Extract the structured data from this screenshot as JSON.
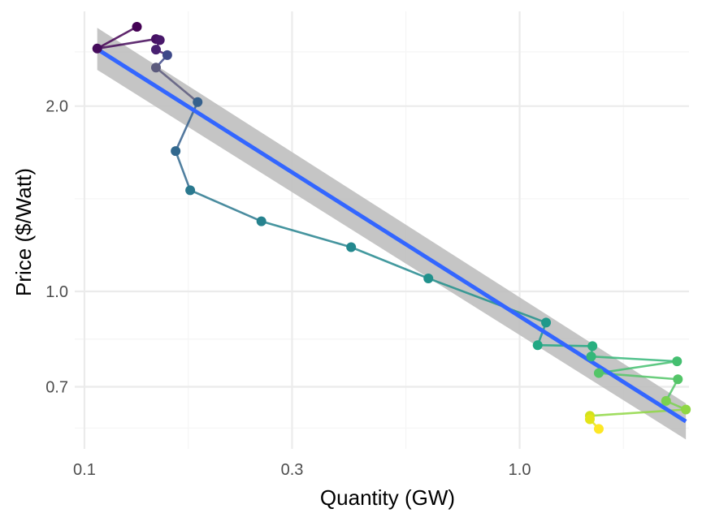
{
  "chart_data": {
    "type": "scatter",
    "xlabel": "Quantity (GW)",
    "ylabel": "Price ($/Watt)",
    "x_scale": "log10",
    "y_scale": "log10",
    "xlim": [
      0.095,
      2.45
    ],
    "ylim": [
      0.555,
      2.85
    ],
    "x_ticks": [
      0.1,
      0.3,
      1.0
    ],
    "x_tick_labels": [
      "0.1",
      "0.3",
      "1.0"
    ],
    "x_minor_ticks": [
      0.1732,
      0.5477,
      1.7321
    ],
    "y_ticks": [
      0.7,
      1.0,
      2.0
    ],
    "y_tick_labels": [
      "0.7",
      "1.0",
      "2.0"
    ],
    "y_minor_ticks": [
      0.6,
      0.8367,
      1.4142,
      2.4495
    ],
    "grid": true,
    "legend": "none",
    "colors": {
      "background": "#ffffff",
      "grid_major": "#ebebeb",
      "grid_minor": "#f5f5f5",
      "fit_line": "#3366ff",
      "ribbon": "#bfbfbf"
    },
    "series": [
      {
        "points": [
          {
            "x": 0.132,
            "y": 2.69,
            "color": "#440154"
          },
          {
            "x": 0.107,
            "y": 2.48,
            "color": "#481769"
          },
          {
            "x": 0.146,
            "y": 2.57,
            "color": "#472a7a"
          },
          {
            "x": 0.149,
            "y": 2.56,
            "color": "#433d84"
          },
          {
            "x": 0.146,
            "y": 2.47,
            "color": "#3d4e8a"
          },
          {
            "x": 0.155,
            "y": 2.42,
            "color": "#365d8d"
          },
          {
            "x": 0.146,
            "y": 2.31,
            "color": "#2e6e8e"
          },
          {
            "x": 0.182,
            "y": 2.03,
            "color": "#29798e"
          },
          {
            "x": 0.162,
            "y": 1.69,
            "color": "#23888e"
          },
          {
            "x": 0.175,
            "y": 1.46,
            "color": "#1f978b"
          },
          {
            "x": 0.255,
            "y": 1.3,
            "color": "#20a386"
          },
          {
            "x": 0.41,
            "y": 1.18,
            "color": "#2ab07f"
          },
          {
            "x": 0.617,
            "y": 1.05,
            "color": "#3bbb75"
          },
          {
            "x": 1.15,
            "y": 0.89,
            "color": "#55c667"
          },
          {
            "x": 1.1,
            "y": 0.818,
            "color": "#73d056"
          },
          {
            "x": 1.47,
            "y": 0.815,
            "color": "#94d840"
          },
          {
            "x": 1.46,
            "y": 0.784,
            "color": "#b8de29"
          },
          {
            "x": 2.3,
            "y": 0.77,
            "color": "#dae319"
          },
          {
            "x": 1.52,
            "y": 0.737,
            "color": "#fde725"
          }
        ],
        "path_colors": [
          "#440154",
          "#46075a",
          "#471164",
          "#48186a",
          "#482071",
          "#482878",
          "#46327e",
          "#443a83",
          "#414487",
          "#3e4989",
          "#39568c",
          "#35608d",
          "#31688e",
          "#2d708e",
          "#2a788e",
          "#26828e",
          "#23888e",
          "#21918c",
          "#1f998a",
          "#20a387",
          "#22a884",
          "#29af7f",
          "#35b779",
          "#44bf70",
          "#54c568",
          "#65cb5e",
          "#75d054",
          "#7ad151",
          "#8fd744",
          "#a5db36",
          "#bddf26",
          "#d2e21b",
          "#e3e418",
          "#fde725"
        ]
      }
    ],
    "all_points": [
      {
        "x": 0.132,
        "y": 2.69
      },
      {
        "x": 0.107,
        "y": 2.48
      },
      {
        "x": 0.146,
        "y": 2.57
      },
      {
        "x": 0.149,
        "y": 2.56
      },
      {
        "x": 0.146,
        "y": 2.47
      },
      {
        "x": 0.155,
        "y": 2.42
      },
      {
        "x": 0.146,
        "y": 2.31
      },
      {
        "x": 0.182,
        "y": 2.03
      },
      {
        "x": 0.162,
        "y": 1.69
      },
      {
        "x": 0.175,
        "y": 1.46
      },
      {
        "x": 0.255,
        "y": 1.3
      },
      {
        "x": 0.41,
        "y": 1.18
      },
      {
        "x": 0.617,
        "y": 1.05
      },
      {
        "x": 1.15,
        "y": 0.89
      },
      {
        "x": 1.1,
        "y": 0.818
      },
      {
        "x": 1.47,
        "y": 0.815
      },
      {
        "x": 1.46,
        "y": 0.784
      },
      {
        "x": 2.3,
        "y": 0.77
      },
      {
        "x": 1.52,
        "y": 0.737
      },
      {
        "x": 2.31,
        "y": 0.72
      },
      {
        "x": 2.17,
        "y": 0.664
      },
      {
        "x": 2.41,
        "y": 0.643
      },
      {
        "x": 1.45,
        "y": 0.628
      },
      {
        "x": 1.45,
        "y": 0.62
      },
      {
        "x": 1.52,
        "y": 0.598
      }
    ],
    "point_colors": [
      "#440154",
      "#450b5b",
      "#471164",
      "#48186a",
      "#482071",
      "#3e4989",
      "#5c5b7d",
      "#35608d",
      "#31688e",
      "#2a788e",
      "#26828e",
      "#23888e",
      "#21918c",
      "#1f998a",
      "#22a884",
      "#29af7f",
      "#35b779",
      "#44bf70",
      "#54c568",
      "#54c568",
      "#7ad151",
      "#8fd744",
      "#d2e21b",
      "#e3e418",
      "#fde725"
    ],
    "fit": {
      "x_range": [
        0.107,
        2.41
      ],
      "y_at_start": 2.475,
      "y_at_end": 0.615,
      "ribbon_low_at_start": 2.29,
      "ribbon_high_at_start": 2.68,
      "ribbon_low_at_end": 0.575,
      "ribbon_high_at_end": 0.658
    }
  }
}
